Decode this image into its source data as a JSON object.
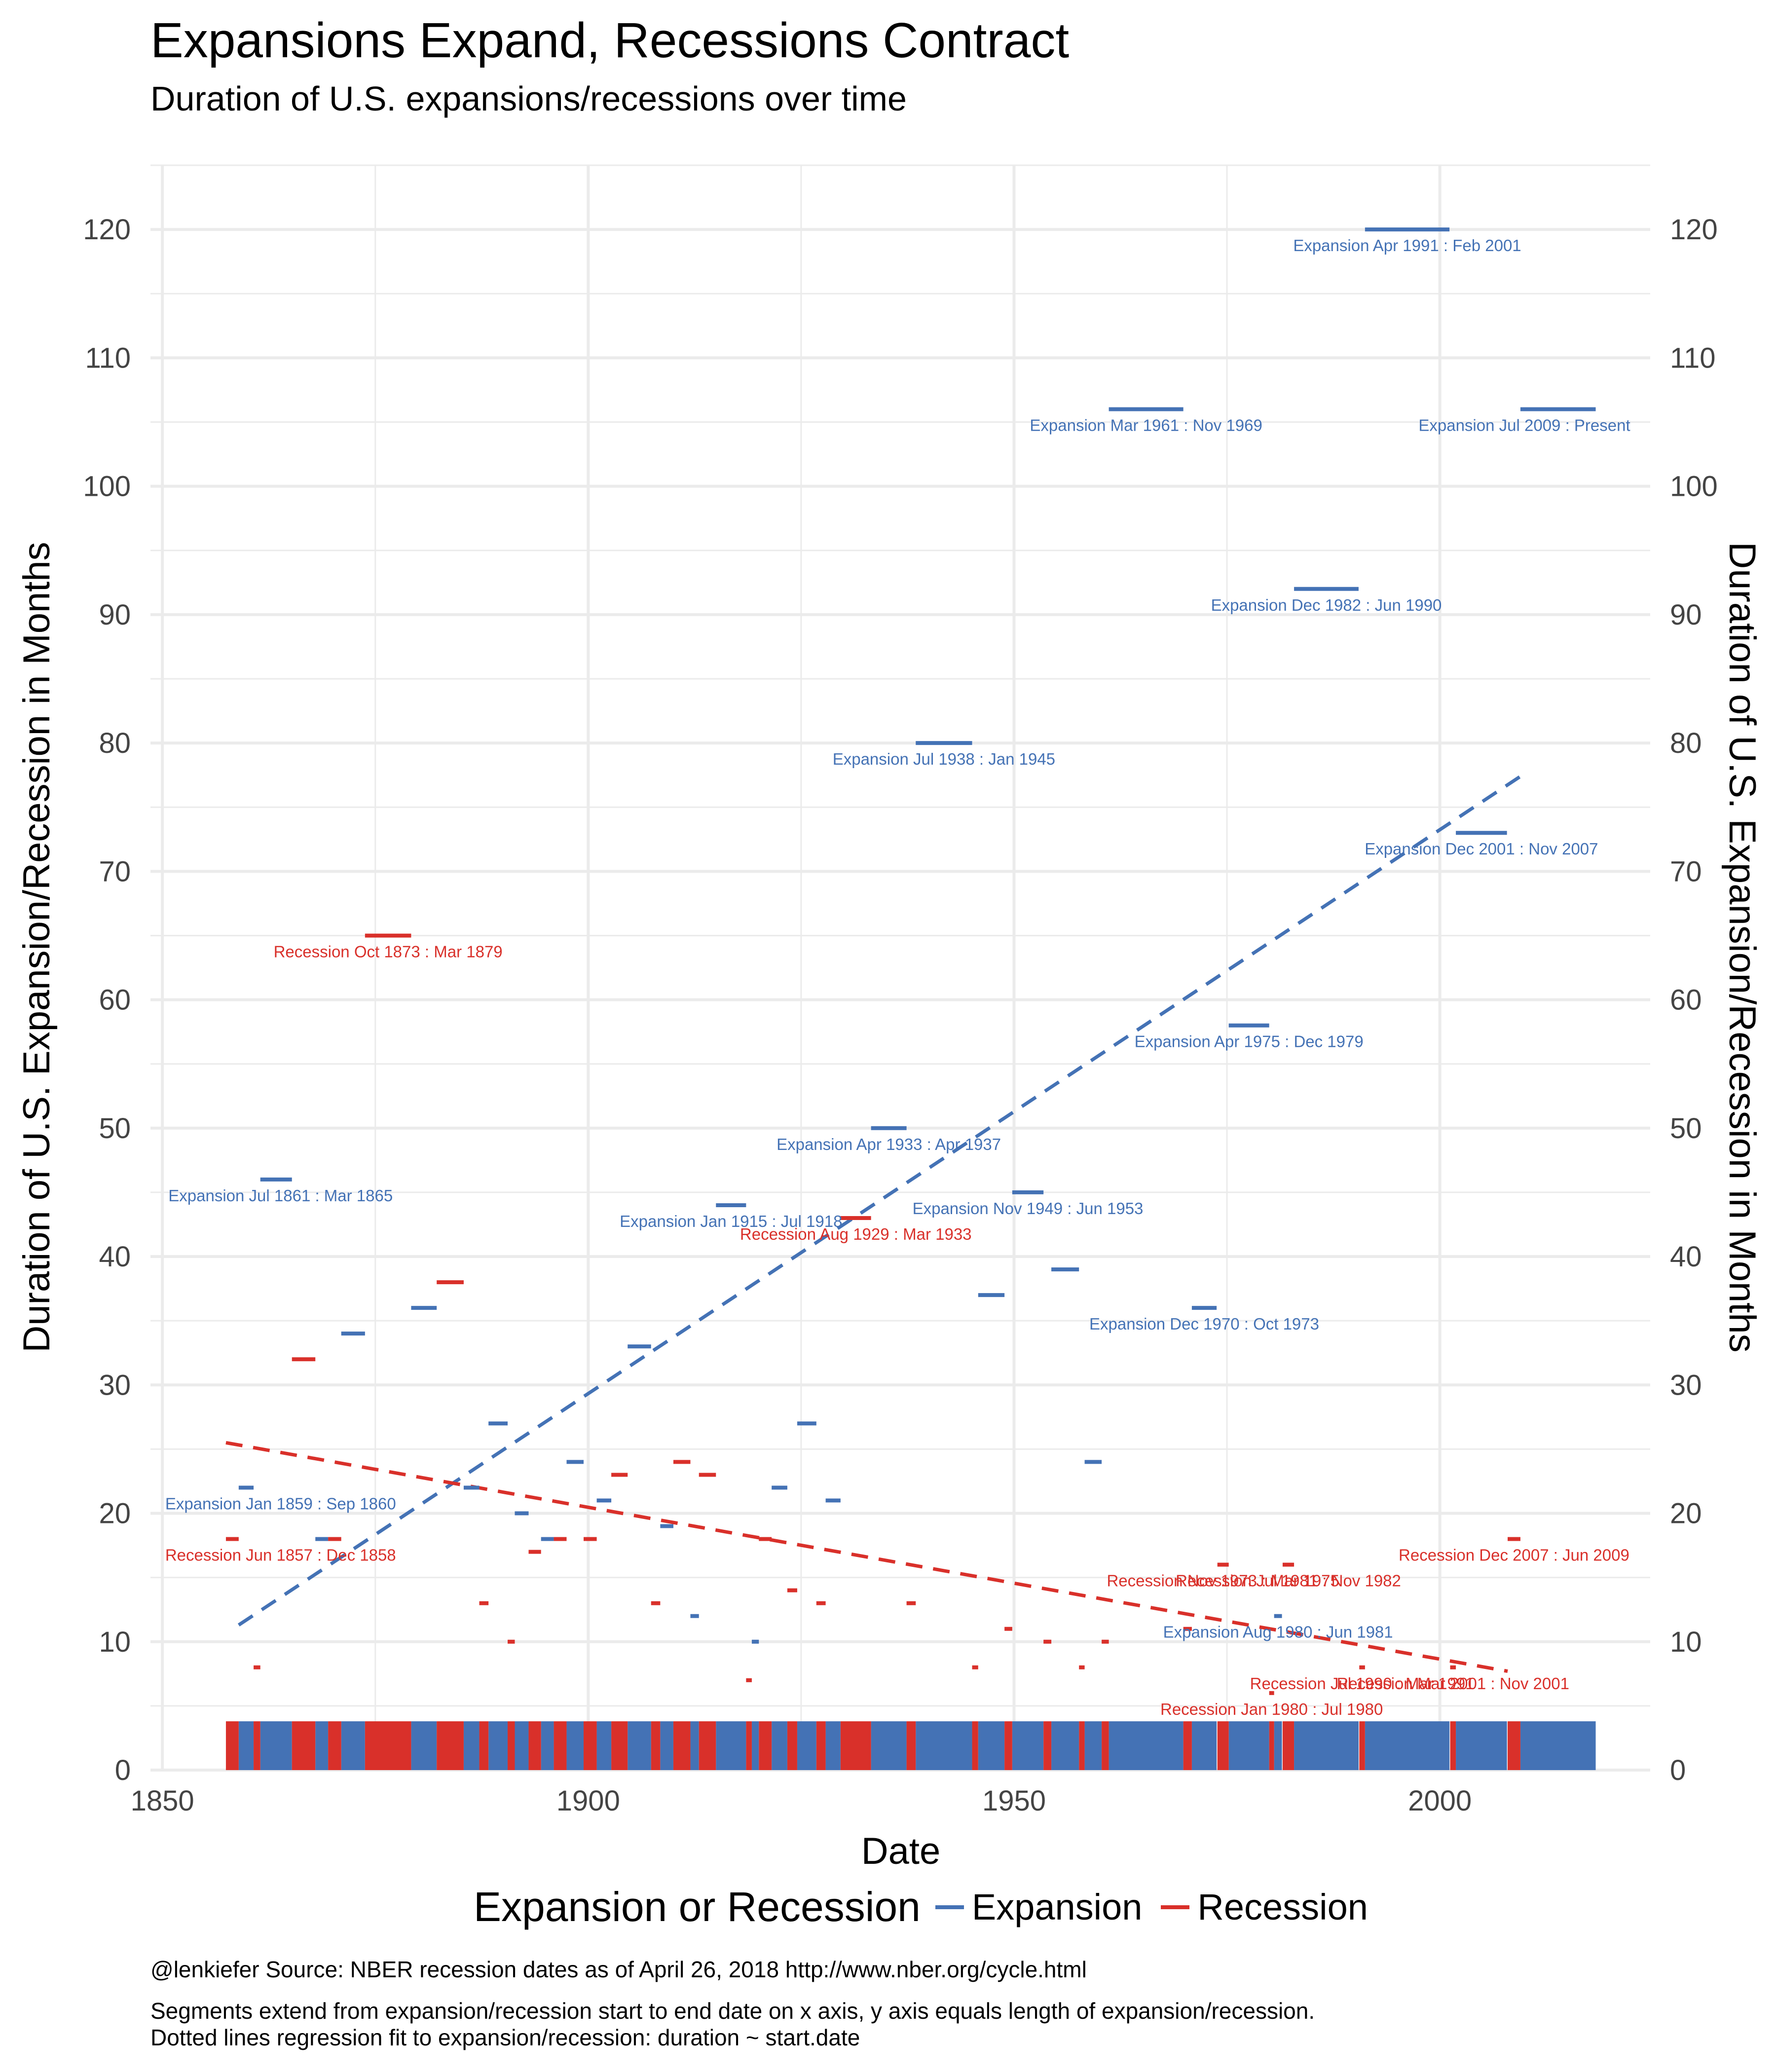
{
  "title": "Expansions Expand, Recessions Contract",
  "subtitle": "Duration of U.S. expansions/recessions over time",
  "caption_lines": [
    "@lenkiefer Source: NBER recession dates as of April 26, 2018 http://www.nber.org/cycle.html",
    "Segments extend from expansion/recession start to end date on x axis, y axis equals length of expansion/recession.",
    "Dotted lines regression fit to expansion/recession: duration ~ start.date"
  ],
  "colors": {
    "expansion": "#4472b5",
    "recession": "#d9302a",
    "grid": "#ebebeb"
  },
  "chart_data": {
    "type": "segment",
    "xlabel": "Date",
    "ylabel": "Duration of U.S. Expansion/Recession in Months",
    "ylabel_right": "Duration of U.S. Expansion/Recession in Months",
    "xlim": [
      1848.6,
      2024.7
    ],
    "ylim": [
      0,
      125
    ],
    "x_ticks": [
      1850,
      1900,
      1950,
      2000
    ],
    "y_ticks": [
      0,
      10,
      20,
      30,
      40,
      50,
      60,
      70,
      80,
      90,
      100,
      110,
      120
    ],
    "grid": true,
    "legend": {
      "title": "Expansion or Recession",
      "position": "bottom",
      "entries": [
        {
          "label": "Expansion",
          "series": "expansion"
        },
        {
          "label": "Recession",
          "series": "recession"
        }
      ]
    },
    "series": [
      {
        "name": "Expansion",
        "key": "expansion",
        "segments": [
          {
            "start": 1858.96,
            "end": 1860.71,
            "duration": 22,
            "label": "Expansion Jan 1859 : Sep 1860"
          },
          {
            "start": 1861.5,
            "end": 1865.21,
            "duration": 46,
            "label": "Expansion Jul 1861 : Mar 1865"
          },
          {
            "start": 1867.96,
            "end": 1869.46,
            "duration": 18
          },
          {
            "start": 1871.0,
            "end": 1873.79,
            "duration": 34
          },
          {
            "start": 1879.21,
            "end": 1882.21,
            "duration": 36
          },
          {
            "start": 1885.38,
            "end": 1887.21,
            "duration": 22
          },
          {
            "start": 1888.29,
            "end": 1890.54,
            "duration": 27
          },
          {
            "start": 1891.38,
            "end": 1893.0,
            "duration": 20
          },
          {
            "start": 1894.46,
            "end": 1895.96,
            "duration": 18
          },
          {
            "start": 1897.46,
            "end": 1899.46,
            "duration": 24
          },
          {
            "start": 1901.0,
            "end": 1902.71,
            "duration": 21
          },
          {
            "start": 1904.63,
            "end": 1907.38,
            "duration": 33
          },
          {
            "start": 1908.46,
            "end": 1910.0,
            "duration": 19
          },
          {
            "start": 1912.0,
            "end": 1913.0,
            "duration": 12
          },
          {
            "start": 1915.0,
            "end": 1918.54,
            "duration": 44,
            "label": "Expansion Jan 1915 : Jul 1918"
          },
          {
            "start": 1919.21,
            "end": 1920.04,
            "duration": 10
          },
          {
            "start": 1921.54,
            "end": 1923.38,
            "duration": 22
          },
          {
            "start": 1924.54,
            "end": 1926.79,
            "duration": 27
          },
          {
            "start": 1927.88,
            "end": 1929.63,
            "duration": 21
          },
          {
            "start": 1933.21,
            "end": 1937.38,
            "duration": 50,
            "label": "Expansion Apr 1933 : Apr 1937"
          },
          {
            "start": 1938.46,
            "end": 1945.08,
            "duration": 80,
            "label": "Expansion Jul 1938 : Jan 1945"
          },
          {
            "start": 1945.79,
            "end": 1948.88,
            "duration": 37
          },
          {
            "start": 1949.79,
            "end": 1953.46,
            "duration": 45,
            "label": "Expansion Nov 1949 : Jun 1953"
          },
          {
            "start": 1954.38,
            "end": 1957.63,
            "duration": 39
          },
          {
            "start": 1958.29,
            "end": 1960.29,
            "duration": 24
          },
          {
            "start": 1961.13,
            "end": 1969.88,
            "duration": 106,
            "label": "Expansion Mar 1961 : Nov 1969"
          },
          {
            "start": 1970.88,
            "end": 1973.79,
            "duration": 36,
            "label": "Expansion Dec 1970 : Oct 1973"
          },
          {
            "start": 1975.21,
            "end": 1979.96,
            "duration": 58,
            "label": "Expansion Apr 1975 : Dec 1979"
          },
          {
            "start": 1980.54,
            "end": 1981.46,
            "duration": 12,
            "label": "Expansion Aug 1980 : Jun 1981"
          },
          {
            "start": 1982.88,
            "end": 1990.46,
            "duration": 92,
            "label": "Expansion Dec 1982 : Jun 1990"
          },
          {
            "start": 1991.21,
            "end": 2001.13,
            "duration": 120,
            "label": "Expansion Apr 1991 : Feb 2001"
          },
          {
            "start": 2001.88,
            "end": 2007.88,
            "duration": 73,
            "label": "Expansion Dec 2001 : Nov 2007"
          },
          {
            "start": 2009.46,
            "end": 2018.3,
            "duration": 106,
            "label": "Expansion Jul 2009 : Present"
          }
        ]
      },
      {
        "name": "Recession",
        "key": "recession",
        "segments": [
          {
            "start": 1857.46,
            "end": 1858.96,
            "duration": 18,
            "label": "Recession Jun 1857 : Dec 1858"
          },
          {
            "start": 1860.71,
            "end": 1861.5,
            "duration": 8
          },
          {
            "start": 1865.21,
            "end": 1867.96,
            "duration": 32
          },
          {
            "start": 1869.46,
            "end": 1871.0,
            "duration": 18
          },
          {
            "start": 1873.79,
            "end": 1879.21,
            "duration": 65,
            "label": "Recession Oct 1873 : Mar 1879"
          },
          {
            "start": 1882.21,
            "end": 1885.38,
            "duration": 38
          },
          {
            "start": 1887.21,
            "end": 1888.29,
            "duration": 13
          },
          {
            "start": 1890.54,
            "end": 1891.38,
            "duration": 10
          },
          {
            "start": 1893.0,
            "end": 1894.46,
            "duration": 17
          },
          {
            "start": 1895.96,
            "end": 1897.46,
            "duration": 18
          },
          {
            "start": 1899.46,
            "end": 1901.0,
            "duration": 18
          },
          {
            "start": 1902.71,
            "end": 1904.63,
            "duration": 23
          },
          {
            "start": 1907.38,
            "end": 1908.46,
            "duration": 13
          },
          {
            "start": 1910.0,
            "end": 1912.0,
            "duration": 24
          },
          {
            "start": 1913.0,
            "end": 1915.0,
            "duration": 23
          },
          {
            "start": 1918.54,
            "end": 1919.21,
            "duration": 7
          },
          {
            "start": 1920.04,
            "end": 1921.54,
            "duration": 18
          },
          {
            "start": 1923.38,
            "end": 1924.54,
            "duration": 14
          },
          {
            "start": 1926.79,
            "end": 1927.88,
            "duration": 13
          },
          {
            "start": 1929.63,
            "end": 1933.21,
            "duration": 43,
            "label": "Recession Aug 1929 : Mar 1933"
          },
          {
            "start": 1937.38,
            "end": 1938.46,
            "duration": 13
          },
          {
            "start": 1945.08,
            "end": 1945.79,
            "duration": 8
          },
          {
            "start": 1948.88,
            "end": 1949.79,
            "duration": 11
          },
          {
            "start": 1953.46,
            "end": 1954.38,
            "duration": 10
          },
          {
            "start": 1957.63,
            "end": 1958.29,
            "duration": 8
          },
          {
            "start": 1960.29,
            "end": 1961.13,
            "duration": 10
          },
          {
            "start": 1969.88,
            "end": 1970.88,
            "duration": 11
          },
          {
            "start": 1973.88,
            "end": 1975.21,
            "duration": 16,
            "label": "Recession Nov 1973 : Mar 1975"
          },
          {
            "start": 1979.96,
            "end": 1980.54,
            "duration": 6,
            "label": "Recession Jan 1980 : Jul 1980"
          },
          {
            "start": 1981.54,
            "end": 1982.88,
            "duration": 16,
            "label": "Recession Jul 1981 : Nov 1982"
          },
          {
            "start": 1990.54,
            "end": 1991.21,
            "duration": 8,
            "label": "Recession Jul 1990 : Mar 1991"
          },
          {
            "start": 2001.21,
            "end": 2001.88,
            "duration": 8,
            "label": "Recession Mar 2001 : Nov 2001"
          },
          {
            "start": 2007.96,
            "end": 2009.46,
            "duration": 18,
            "label": "Recession Dec 2007 : Jun 2009"
          }
        ]
      }
    ],
    "trend_lines": [
      {
        "series": "expansion",
        "style": "dashed",
        "x": [
          1858.96,
          2009.46
        ],
        "y": [
          11.3,
          77.4
        ]
      },
      {
        "series": "recession",
        "style": "dashed",
        "x": [
          1857.46,
          2007.96
        ],
        "y": [
          25.5,
          7.7
        ]
      }
    ],
    "timeline_strip": {
      "description": "bars along the bottom colored by phase",
      "y_range": [
        0,
        3.8
      ]
    }
  }
}
